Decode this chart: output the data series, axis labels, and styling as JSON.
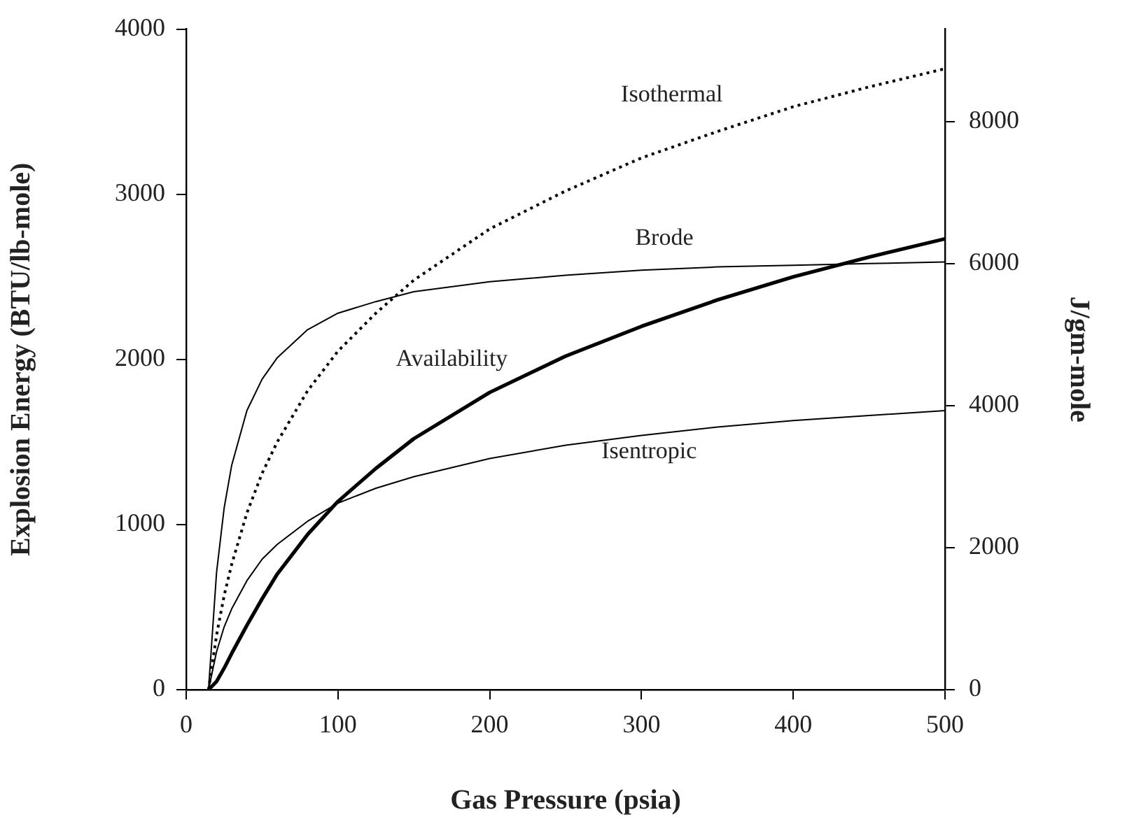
{
  "chart_data": {
    "type": "line",
    "xlabel": "Gas Pressure (psia)",
    "ylabel": "Explosion Energy (BTU/lb-mole)",
    "y2label": "J/gm-mole",
    "x": [
      14.7,
      20,
      25,
      30,
      40,
      50,
      60,
      80,
      100,
      125,
      150,
      200,
      250,
      300,
      350,
      400,
      450,
      500
    ],
    "series": [
      {
        "name": "Isothermal",
        "color": "#000000",
        "line_style": "dotted",
        "values": [
          0,
          330,
          570,
          760,
          1070,
          1310,
          1500,
          1810,
          2050,
          2280,
          2480,
          2790,
          3020,
          3220,
          3380,
          3530,
          3650,
          3760
        ]
      },
      {
        "name": "Brode",
        "color": "#000000",
        "values": [
          0,
          710,
          1100,
          1360,
          1690,
          1880,
          2010,
          2180,
          2280,
          2350,
          2410,
          2470,
          2510,
          2540,
          2560,
          2570,
          2580,
          2590
        ]
      },
      {
        "name": "Availability",
        "color": "#000000",
        "values": [
          0,
          50,
          130,
          220,
          390,
          550,
          700,
          940,
          1140,
          1340,
          1520,
          1800,
          2020,
          2200,
          2360,
          2500,
          2620,
          2730
        ]
      },
      {
        "name": "Isentropic",
        "color": "#000000",
        "values": [
          0,
          230,
          380,
          490,
          660,
          790,
          880,
          1020,
          1130,
          1220,
          1290,
          1400,
          1480,
          1540,
          1590,
          1630,
          1660,
          1690
        ]
      }
    ],
    "xlim": [
      0,
      500
    ],
    "xticks": [
      0,
      100,
      200,
      300,
      400,
      500
    ],
    "ylim": [
      0,
      4000
    ],
    "yticks": [
      0,
      1000,
      2000,
      3000,
      4000
    ],
    "y2lim": [
      0,
      9304
    ],
    "y2ticks": [
      0,
      2000,
      4000,
      6000,
      8000
    ],
    "grid": false,
    "legend": false,
    "marker": "none",
    "line_style": "solid"
  }
}
